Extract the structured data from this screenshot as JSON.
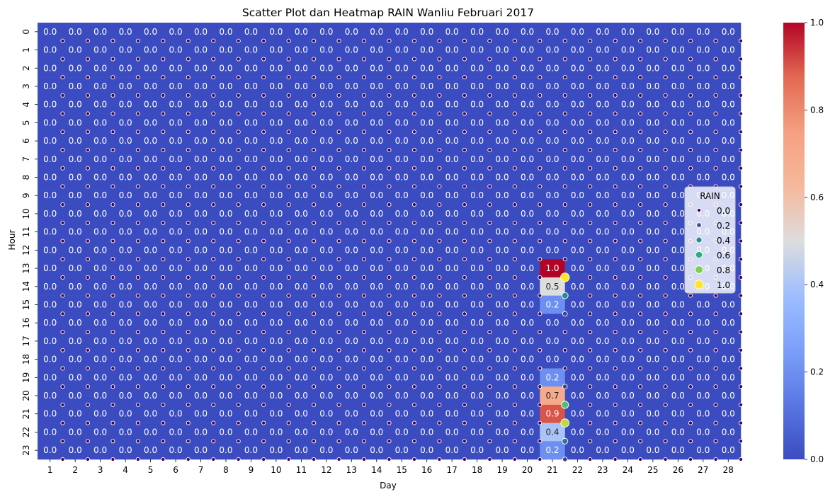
{
  "chart_data": {
    "type": "heatmap",
    "title": "Scatter Plot dan Heatmap RAIN Wanliu Februari 2017",
    "xlabel": "Day",
    "ylabel": "Hour",
    "x_categories": [
      "1",
      "2",
      "3",
      "4",
      "5",
      "6",
      "7",
      "8",
      "9",
      "10",
      "11",
      "12",
      "13",
      "14",
      "15",
      "16",
      "17",
      "18",
      "19",
      "20",
      "21",
      "22",
      "23",
      "24",
      "25",
      "26",
      "27",
      "28"
    ],
    "y_categories": [
      "0",
      "1",
      "2",
      "3",
      "4",
      "5",
      "6",
      "7",
      "8",
      "9",
      "10",
      "11",
      "12",
      "13",
      "14",
      "15",
      "16",
      "17",
      "18",
      "19",
      "20",
      "21",
      "22",
      "23"
    ],
    "default_value": 0.0,
    "default_label": "0.0",
    "nonzero_cells": [
      {
        "day": 21,
        "hour": 13,
        "value": 1.0,
        "label": "1.0"
      },
      {
        "day": 21,
        "hour": 14,
        "value": 0.5,
        "label": "0.5"
      },
      {
        "day": 21,
        "hour": 15,
        "value": 0.2,
        "label": "0.2"
      },
      {
        "day": 21,
        "hour": 19,
        "value": 0.2,
        "label": "0.2"
      },
      {
        "day": 21,
        "hour": 20,
        "value": 0.7,
        "label": "0.7"
      },
      {
        "day": 21,
        "hour": 21,
        "value": 0.9,
        "label": "0.9"
      },
      {
        "day": 21,
        "hour": 22,
        "value": 0.4,
        "label": "0.4"
      },
      {
        "day": 21,
        "hour": 23,
        "value": 0.2,
        "label": "0.2"
      }
    ],
    "colorbar": {
      "colormap": "coolwarm",
      "range": [
        0.0,
        1.0
      ],
      "ticks": [
        "0.0",
        "0.2",
        "0.4",
        "0.6",
        "0.8",
        "1.0"
      ]
    },
    "scatter_overlay": {
      "default_value": 0.0,
      "nonzero_points": [
        {
          "day": 21,
          "hour": 13,
          "value": 1.0
        },
        {
          "day": 21,
          "hour": 14,
          "value": 0.5
        },
        {
          "day": 21,
          "hour": 15,
          "value": 0.2
        },
        {
          "day": 21,
          "hour": 19,
          "value": 0.2
        },
        {
          "day": 21,
          "hour": 20,
          "value": 0.7
        },
        {
          "day": 21,
          "hour": 21,
          "value": 0.9
        },
        {
          "day": 21,
          "hour": 22,
          "value": 0.4
        },
        {
          "day": 21,
          "hour": 23,
          "value": 0.2
        }
      ]
    },
    "legend": {
      "title": "RAIN",
      "placement": "right",
      "entries": [
        {
          "label": "0.0",
          "color": "#440154"
        },
        {
          "label": "0.2",
          "color": "#3b528b"
        },
        {
          "label": "0.4",
          "color": "#21918c"
        },
        {
          "label": "0.6",
          "color": "#28ae80"
        },
        {
          "label": "0.8",
          "color": "#7ad151"
        },
        {
          "label": "1.0",
          "color": "#fde725"
        }
      ]
    }
  }
}
